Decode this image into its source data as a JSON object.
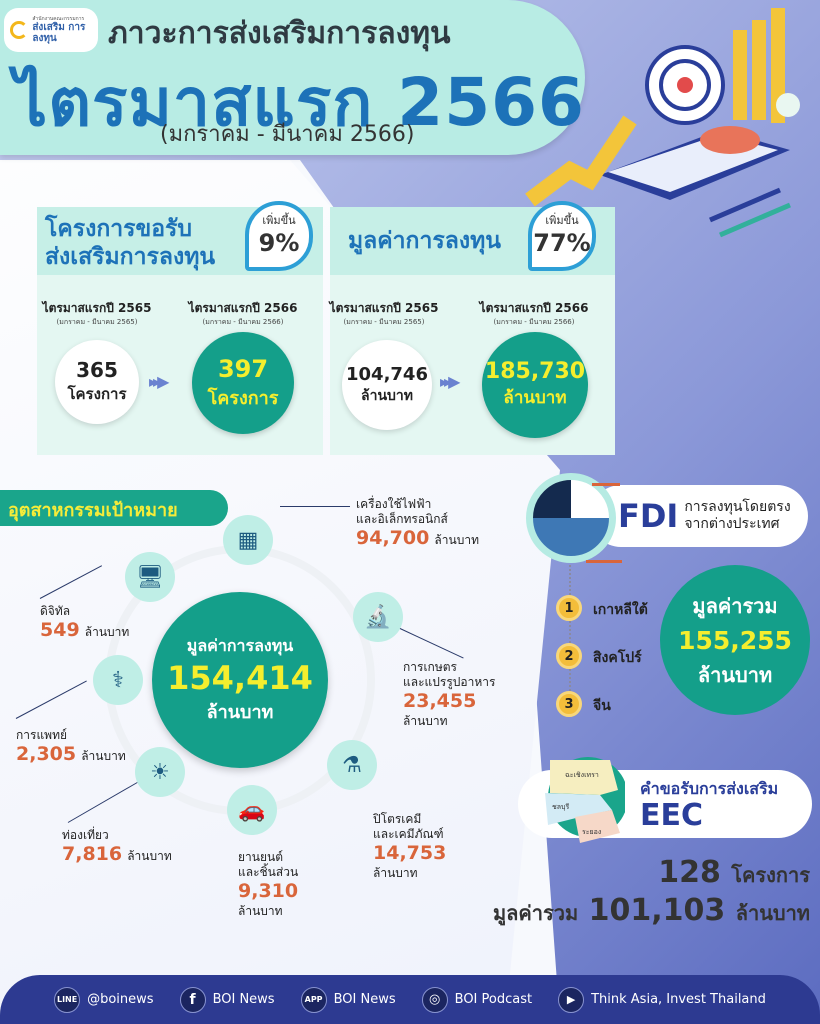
{
  "header": {
    "logo_text": "ส่งเสริม การลงทุน",
    "logo_small": "สำนักงานคณะกรรมการ",
    "subtitle": "ภาวะการส่งเสริมการลงทุน",
    "title": "ไตรมาสแรก 2566",
    "period": "(มกราคม - มีนาคม 2566)"
  },
  "projects": {
    "title_line1": "โครงการขอรับ",
    "title_line2": "ส่งเสริมการลงทุน",
    "increase_label": "เพิ่มขึ้น",
    "increase": "9%",
    "prev": {
      "label": "ไตรมาสแรกปี 2565",
      "range": "(มกราคม - มีนาคม 2565)",
      "value": "365",
      "unit": "โครงการ"
    },
    "curr": {
      "label": "ไตรมาสแรกปี 2566",
      "range": "(มกราคม - มีนาคม 2566)",
      "value": "397",
      "unit": "โครงการ"
    }
  },
  "investment": {
    "title": "มูลค่าการลงทุน",
    "increase_label": "เพิ่มขึ้น",
    "increase": "77%",
    "prev": {
      "label": "ไตรมาสแรกปี 2565",
      "range": "(มกราคม - มีนาคม 2565)",
      "value": "104,746",
      "unit": "ล้านบาท"
    },
    "curr": {
      "label": "ไตรมาสแรกปี 2566",
      "range": "(มกราคม - มีนาคม 2566)",
      "value": "185,730",
      "unit": "ล้านบาท"
    }
  },
  "industries": {
    "label": "อุตสาหกรรมเป้าหมาย",
    "center": {
      "title": "มูลค่าการลงทุน",
      "value": "154,414",
      "unit": "ล้านบาท"
    },
    "items": [
      {
        "name": "เครื่องใช้ไฟฟ้า",
        "name2": "และอิเล็กทรอนิกส์",
        "value": "94,700",
        "unit": "ล้านบาท",
        "icon": "circuit-icon"
      },
      {
        "name": "การเกษตร",
        "name2": "และแปรรูปอาหาร",
        "value": "23,455",
        "unit": "ล้านบาท",
        "icon": "microscope-icon"
      },
      {
        "name": "ปิโตรเคมี",
        "name2": "และเคมีภัณฑ์",
        "value": "14,753",
        "unit": "ล้านบาท",
        "icon": "chemistry-icon"
      },
      {
        "name": "ยานยนต์",
        "name2": "และชิ้นส่วน",
        "value": "9,310",
        "unit": "ล้านบาท",
        "icon": "car-icon"
      },
      {
        "name": "ท่องเที่ยว",
        "value": "7,816",
        "unit": "ล้านบาท",
        "icon": "beach-icon"
      },
      {
        "name": "การแพทย์",
        "value": "2,305",
        "unit": "ล้านบาท",
        "icon": "medical-icon"
      },
      {
        "name": "ดิจิทัล",
        "value": "549",
        "unit": "ล้านบาท",
        "icon": "computer-icon"
      }
    ]
  },
  "fdi": {
    "abbr": "FDI",
    "desc1": "การลงทุนโดยตรง",
    "desc2": "จากต่างประเทศ",
    "ranks": [
      {
        "n": "1",
        "country": "เกาหลีใต้"
      },
      {
        "n": "2",
        "country": "สิงคโปร์"
      },
      {
        "n": "3",
        "country": "จีน"
      }
    ],
    "total_label": "มูลค่ารวม",
    "total": "155,255",
    "unit": "ล้านบาท"
  },
  "eec": {
    "title": "คำขอรับการส่งเสริม",
    "abbr": "EEC",
    "provinces": [
      "ฉะเชิงเทรา",
      "ชลบุรี",
      "ระยอง"
    ],
    "projects": "128",
    "projects_unit": "โครงการ",
    "total_label": "มูลค่ารวม",
    "total": "101,103",
    "unit": "ล้านบาท"
  },
  "footer": [
    {
      "icon": "line-icon",
      "glyph": "LINE",
      "label": "@boinews"
    },
    {
      "icon": "facebook-icon",
      "glyph": "f",
      "label": "BOI News"
    },
    {
      "icon": "app-icon",
      "glyph": "APP",
      "label": "BOI News"
    },
    {
      "icon": "podcast-icon",
      "glyph": "◎",
      "label": "BOI Podcast"
    },
    {
      "icon": "youtube-icon",
      "glyph": "▶",
      "label": "Think Asia, Invest Thailand"
    }
  ],
  "colors": {
    "teal": "#149f8a",
    "blue": "#1d72b8",
    "navy": "#2d3a91",
    "orange": "#d9653b",
    "yellow": "#f5ee2e"
  }
}
